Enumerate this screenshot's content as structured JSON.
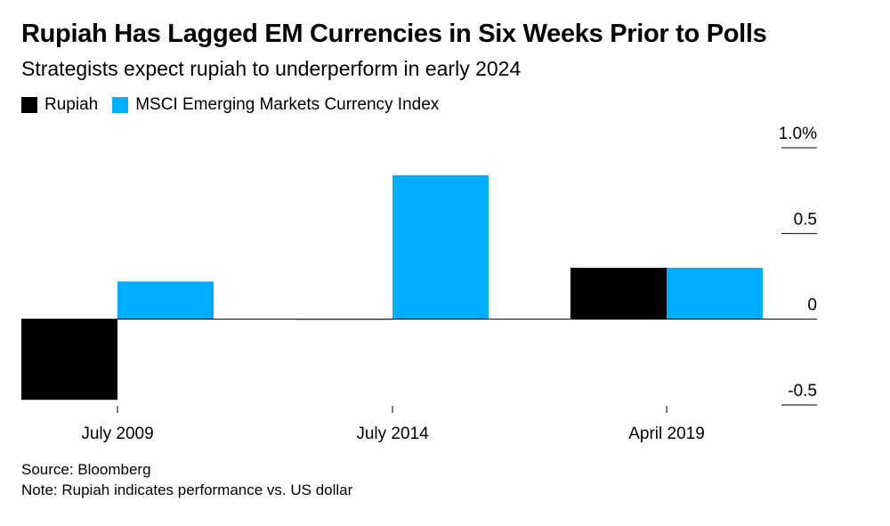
{
  "title": "Rupiah Has Lagged EM Currencies in Six Weeks Prior to Polls",
  "subtitle": "Strategists expect rupiah to underperform in early 2024",
  "source": "Source: Bloomberg",
  "note": "Note: Rupiah indicates performance vs. US dollar",
  "chart_data": {
    "type": "bar",
    "categories": [
      "July 2009",
      "July 2014",
      "April 2019"
    ],
    "series": [
      {
        "name": "Rupiah",
        "color": "#000000",
        "values": [
          -0.47,
          0.0,
          0.3
        ]
      },
      {
        "name": "MSCI Emerging Markets Currency Index",
        "color": "#00aeff",
        "values": [
          0.22,
          0.84,
          0.3
        ]
      }
    ],
    "yticks": [
      {
        "value": 1.0,
        "label": "1.0%"
      },
      {
        "value": 0.5,
        "label": "0.5"
      },
      {
        "value": 0,
        "label": "0"
      },
      {
        "value": -0.5,
        "label": "-0.5"
      }
    ],
    "ylim": [
      -0.5,
      1.0
    ],
    "grid": false,
    "legend": "top-left",
    "y_axis_side": "right"
  }
}
